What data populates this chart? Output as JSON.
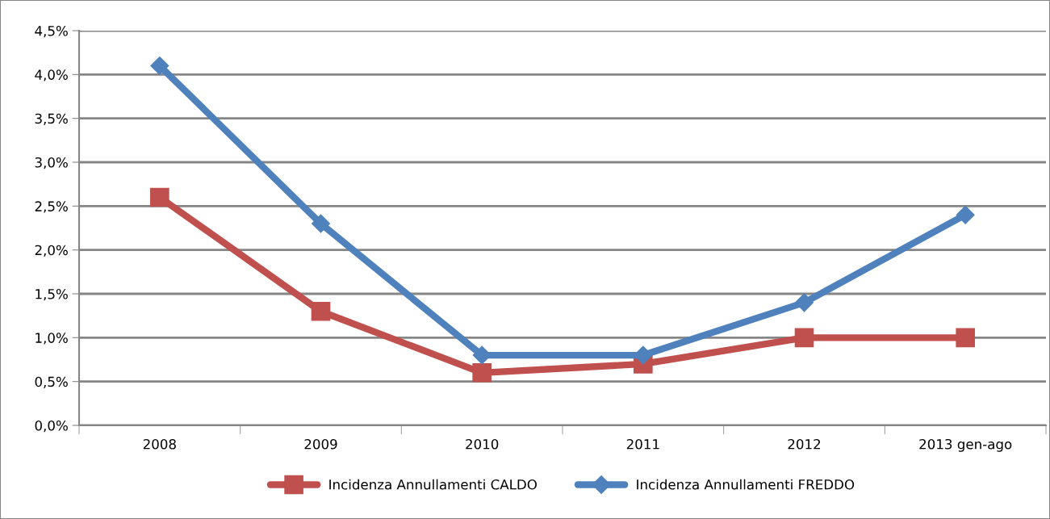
{
  "chart_data": {
    "type": "line",
    "categories": [
      "2008",
      "2009",
      "2010",
      "2011",
      "2012",
      "2013 gen-ago"
    ],
    "series": [
      {
        "name": "Incidenza Annullamenti CALDO",
        "color": "#c0504d",
        "marker": "square",
        "values": [
          2.6,
          1.3,
          0.6,
          0.7,
          1.0,
          1.0
        ]
      },
      {
        "name": "Incidenza Annullamenti FREDDO",
        "color": "#4f81bd",
        "marker": "diamond",
        "values": [
          4.1,
          2.3,
          0.8,
          0.8,
          1.4,
          2.4
        ]
      }
    ],
    "ylim": [
      0,
      4.5
    ],
    "yticks": [
      {
        "value": 0,
        "label": "0,0%"
      },
      {
        "value": 0.5,
        "label": "0,5%"
      },
      {
        "value": 1.0,
        "label": "1,0%"
      },
      {
        "value": 1.5,
        "label": "1,5%"
      },
      {
        "value": 2.0,
        "label": "2,0%"
      },
      {
        "value": 2.5,
        "label": "2,5%"
      },
      {
        "value": 3.0,
        "label": "3,0%"
      },
      {
        "value": 3.5,
        "label": "3,5%"
      },
      {
        "value": 4.0,
        "label": "4,0%"
      },
      {
        "value": 4.5,
        "label": "4,5%"
      }
    ],
    "grid": "y",
    "legend": "bottom"
  }
}
